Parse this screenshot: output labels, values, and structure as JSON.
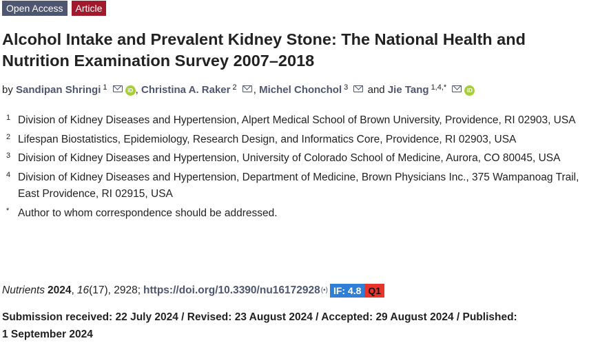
{
  "badges": {
    "open_access": "Open Access",
    "article": "Article"
  },
  "title": "Alcohol Intake and Prevalent Kidney Stone: The National Health and Nutrition Examination Survey 2007–2018",
  "authors": {
    "prefix": "by",
    "list": [
      {
        "name": "Sandipan Shringi",
        "sup": "1"
      },
      {
        "name": "Christina A. Raker",
        "sup": "2"
      },
      {
        "name": "Michel Chonchol",
        "sup": "3"
      },
      {
        "name": "Jie Tang",
        "sup": "1,4,*"
      }
    ],
    "separator": ",",
    "conjunction": "and"
  },
  "affiliations": [
    {
      "num": "1",
      "text": "Division of Kidney Diseases and Hypertension, Alpert Medical School of Brown University, Providence, RI 02903, USA"
    },
    {
      "num": "2",
      "text": "Lifespan Biostatistics, Epidemiology, Research Design, and Informatics Core, Providence, RI 02903, USA"
    },
    {
      "num": "3",
      "text": "Division of Kidney Diseases and Hypertension, University of Colorado School of Medicine, Aurora, CO 80045, USA"
    },
    {
      "num": "4",
      "text": "Division of Kidney Diseases and Hypertension, Department of Medicine, Brown Physicians Inc., 375 Wampanoag Trail, East Providence, RI 02915, USA"
    },
    {
      "num": "*",
      "text": "Author to whom correspondence should be addressed."
    }
  ],
  "citation": {
    "journal": "Nutrients",
    "year": "2024",
    "volume": "16",
    "issue": "(17), 2928;",
    "doi": "https://doi.org/10.3390/nu16172928",
    "impact_factor": "IF: 4.8",
    "quartile": "Q1"
  },
  "dates": {
    "text": "Submission received: 22 July 2024 / Revised: 23 August 2024 / Accepted: 29 August 2024 / Published: 1 September 2024"
  },
  "icons": {
    "mail": "mail-icon",
    "orcid": "orcid-icon",
    "orcid_label": "iD",
    "broadcast": "broadcast-icon",
    "broadcast_glyph": "(•)"
  }
}
